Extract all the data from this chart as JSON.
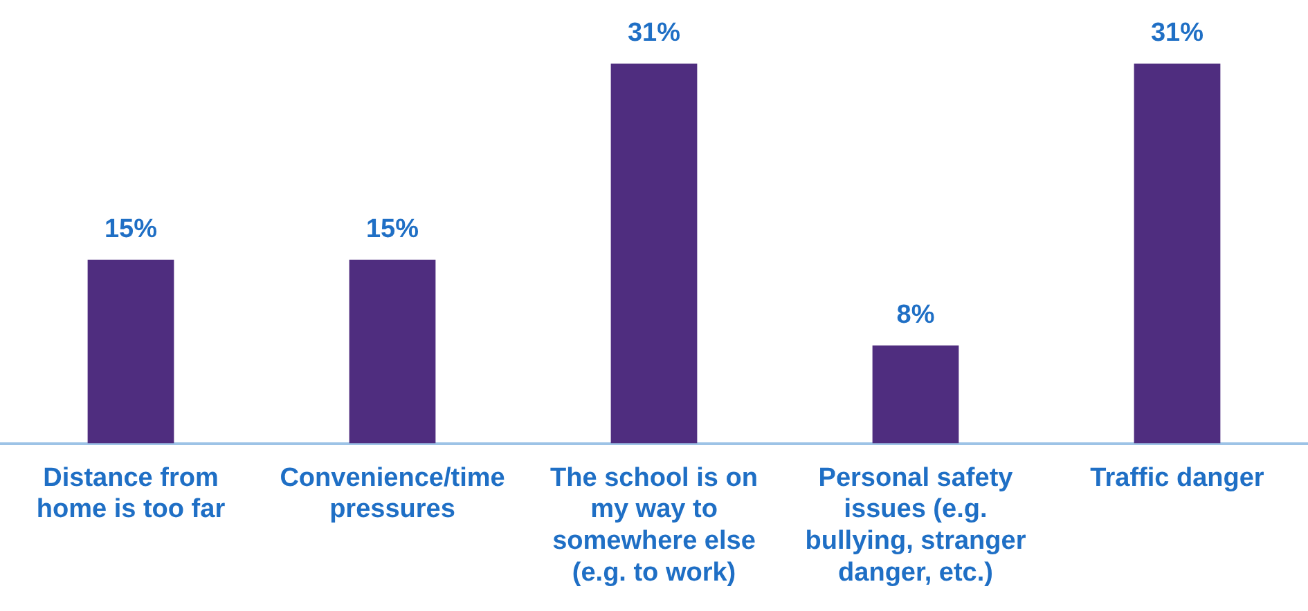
{
  "chart_data": {
    "type": "bar",
    "categories": [
      "Distance from home is too far",
      "Convenience/time pressures",
      "The school is on my way to somewhere else (e.g. to work)",
      "Personal safety issues (e.g. bullying, stranger danger, etc.)",
      "Traffic danger"
    ],
    "values": [
      15,
      15,
      31,
      8,
      31
    ],
    "value_labels": [
      "15%",
      "15%",
      "31%",
      "8%",
      "31%"
    ],
    "color": "#4f2d7f",
    "grid": false,
    "legend": false
  }
}
